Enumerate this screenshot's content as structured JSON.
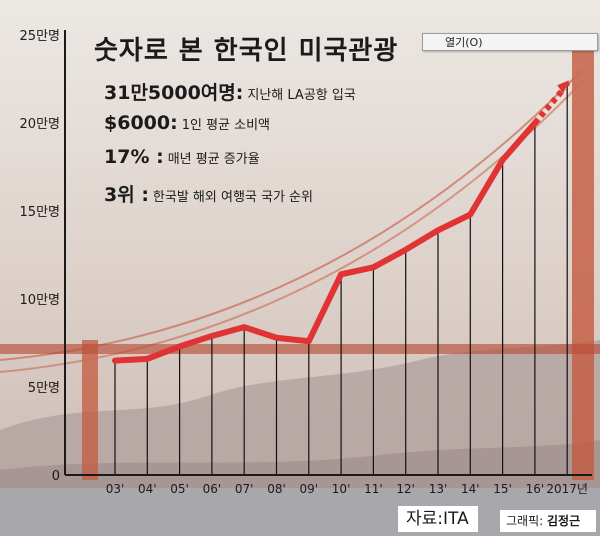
{
  "header": {
    "title": "숫자로 본 한국인 미국관광",
    "facts": [
      {
        "big": "31만5000여명:",
        "small": "지난해 LA공항 입국"
      },
      {
        "big": "$6000:",
        "small": "1인 평균 소비액"
      },
      {
        "big": "17% :",
        "small": "매년 평균 증가율"
      },
      {
        "big": "3위 :",
        "small": "한국발 해외 여행국 국가 순위"
      }
    ]
  },
  "context_menu": {
    "item": "열기(O)"
  },
  "footer": {
    "source": "자료:ITA",
    "credit_label": "그래픽:",
    "credit_name": "김정근"
  },
  "colors": {
    "line": "#e03434",
    "axis": "#1a1a1a"
  },
  "chart_data": {
    "type": "line",
    "title": "숫자로 본 한국인 미국관광",
    "categories": [
      "03'",
      "04'",
      "05'",
      "06'",
      "07'",
      "08'",
      "09'",
      "10'",
      "11'",
      "12'",
      "13'",
      "14'",
      "15'",
      "16'",
      "2017년"
    ],
    "series": [
      {
        "values": [
          6.5,
          6.6,
          7.3,
          7.9,
          8.4,
          7.8,
          7.6,
          11.4,
          11.8,
          12.8,
          13.9,
          14.8,
          17.9,
          20.0,
          22.2
        ]
      }
    ],
    "projected_segment": [
      "16'",
      "2017년"
    ],
    "ytick_labels": [
      "0",
      "5만명",
      "10만명",
      "15만명",
      "20만명",
      "25만명"
    ],
    "ylim": [
      0,
      25
    ],
    "xlabel": "",
    "ylabel": ""
  }
}
